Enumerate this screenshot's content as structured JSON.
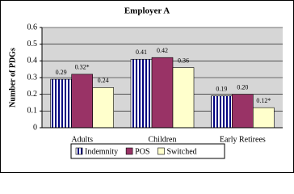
{
  "chart_data": {
    "type": "bar",
    "title": "Employer A",
    "y_label": "Number of PDGs",
    "categories": [
      "Adults",
      "Children",
      "Early Retirees"
    ],
    "series": [
      {
        "name": "Indemnity",
        "color": "#000080",
        "pattern": "vertical-stripes",
        "values": [
          0.29,
          0.41,
          0.19
        ],
        "value_labels": [
          "0.29",
          "0.41",
          "0.19"
        ]
      },
      {
        "name": "POS",
        "color": "#993366",
        "values": [
          0.32,
          0.42,
          0.2
        ],
        "value_labels": [
          "0.32*",
          "0.42",
          "0.20"
        ]
      },
      {
        "name": "Switched",
        "color": "#ffffcc",
        "values": [
          0.24,
          0.36,
          0.12
        ],
        "value_labels": [
          "0.24",
          "0.36",
          "0.12*"
        ]
      }
    ],
    "ylim": [
      0,
      0.6
    ],
    "yticks": [
      0,
      0.1,
      0.2,
      0.3,
      0.4,
      0.5,
      0.6
    ],
    "grid": true,
    "legend": "bottom"
  }
}
